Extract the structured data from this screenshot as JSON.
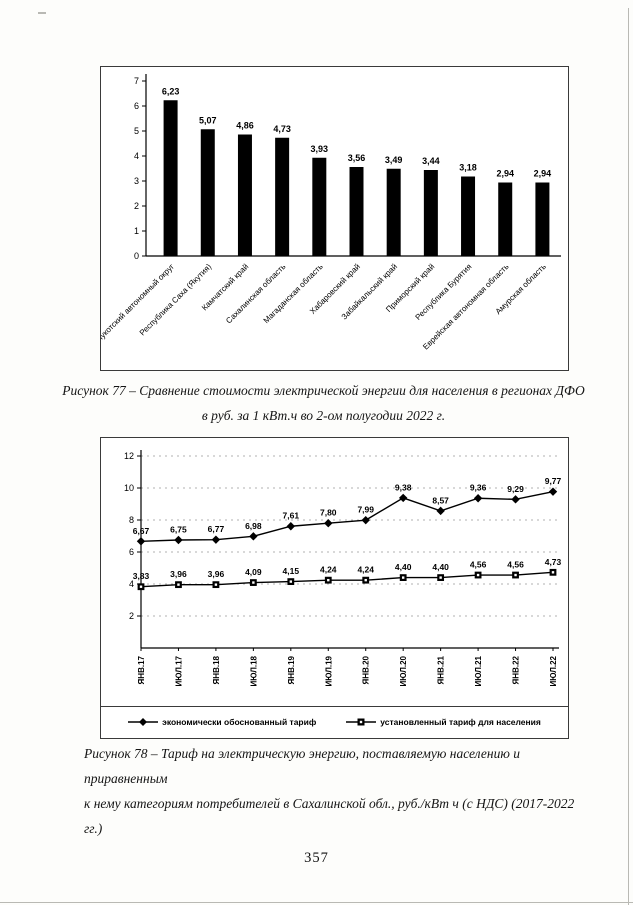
{
  "page": {
    "number": "357"
  },
  "figure77": {
    "caption_line1": "Рисунок 77 – Сравнение стоимости электрической энергии для населения в регионах ДФО",
    "caption_line2": "в руб. за 1 кВт.ч во 2-ом полугодии 2022 г."
  },
  "figure78": {
    "caption_line1": "Рисунок 78 – Тариф на электрическую энергию, поставляемую населению и приравненным",
    "caption_line2": "к нему категориям потребителей в Сахалинской обл., руб./кВт ч (с НДС) (2017-2022 гг.)"
  },
  "chart_data": [
    {
      "type": "bar",
      "title": "",
      "xlabel": "",
      "ylabel": "",
      "categories": [
        "Чукотский автономный округ",
        "Республика Саха (Якутия)",
        "Камчатский край",
        "Сахалинская область",
        "Магаданская область",
        "Хабаровский край",
        "Забайкальский край",
        "Приморский край",
        "Республика Бурятия",
        "Еврейская автономная область",
        "Амурская область"
      ],
      "values": [
        6.23,
        5.07,
        4.86,
        4.73,
        3.93,
        3.56,
        3.49,
        3.44,
        3.18,
        2.94,
        2.94
      ],
      "ylim": [
        0,
        7
      ],
      "ytick_step": 1,
      "bar_color": "#000000",
      "grid": false,
      "legend": "none",
      "decimal_separator": ","
    },
    {
      "type": "line",
      "title": "",
      "xlabel": "",
      "ylabel": "",
      "categories": [
        "ЯНВ.17",
        "ИЮЛ.17",
        "ЯНВ.18",
        "ИЮЛ.18",
        "ЯНВ.19",
        "ИЮЛ.19",
        "ЯНВ.20",
        "ИЮЛ.20",
        "ЯНВ.21",
        "ИЮЛ.21",
        "ЯНВ.22",
        "ИЮЛ.22"
      ],
      "series": [
        {
          "name": "экономически обоснованный тариф",
          "marker": "diamond",
          "color": "#000000",
          "values": [
            6.67,
            6.75,
            6.77,
            6.98,
            7.61,
            7.8,
            7.99,
            9.38,
            8.57,
            9.36,
            9.29,
            9.77
          ]
        },
        {
          "name": "установленный тариф для населения",
          "marker": "square",
          "color": "#000000",
          "values": [
            3.83,
            3.96,
            3.96,
            4.09,
            4.15,
            4.24,
            4.24,
            4.4,
            4.4,
            4.56,
            4.56,
            4.73
          ]
        }
      ],
      "ylim": [
        0,
        12
      ],
      "ytick_step": 2,
      "grid": true,
      "legend_position": "bottom",
      "decimal_separator": ","
    }
  ]
}
